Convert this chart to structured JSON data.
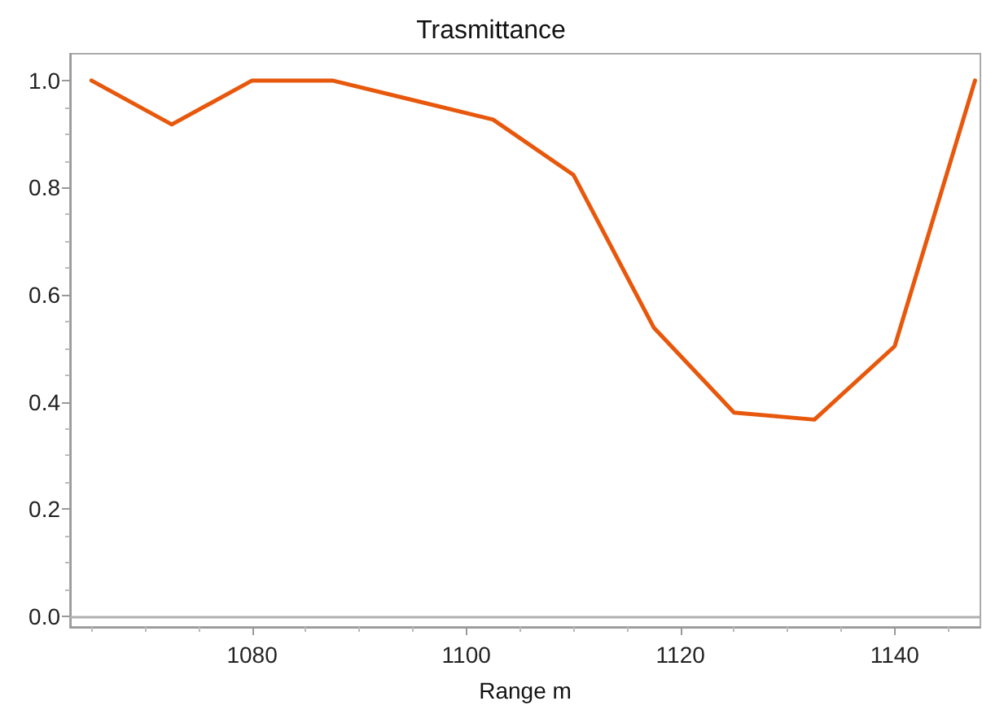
{
  "chart_data": {
    "type": "line",
    "title": "Trasmittance",
    "xlabel": "Range m",
    "x": [
      1065,
      1072.5,
      1080,
      1087.5,
      1102.5,
      1110,
      1117.5,
      1125,
      1132.5,
      1140,
      1147.5
    ],
    "series": [
      {
        "color": "#e8580c",
        "values": [
          1.0,
          0.918,
          1.0,
          1.0,
          0.927,
          0.824,
          0.539,
          0.38,
          0.367,
          0.504,
          1.0
        ]
      }
    ],
    "xlim": [
      1063,
      1148
    ],
    "xticks": [
      1080,
      1100,
      1120,
      1140
    ],
    "ylim": [
      -0.02,
      1.05
    ],
    "yticks": [
      {
        "value": 0,
        "label": "0.0"
      },
      0.2,
      0.4,
      0.6,
      0.8,
      {
        "value": 1,
        "label": "1.0"
      }
    ],
    "ref_lines": [
      {
        "axis": "y",
        "value": 0,
        "color": "#b0b0b0"
      }
    ],
    "grid": false,
    "marker": "none",
    "line_style": "solid"
  }
}
